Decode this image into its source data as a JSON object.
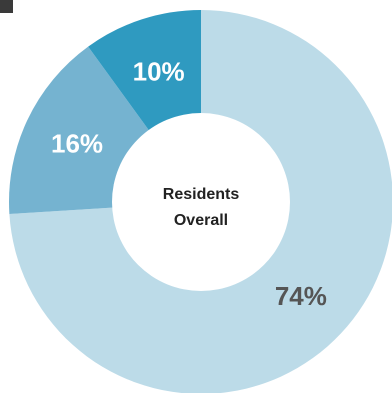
{
  "chart_data": {
    "type": "pie",
    "center_label": [
      "Residents",
      "Overall"
    ],
    "slices": [
      {
        "label": "74%",
        "value": 74,
        "color": "#bcdbe8",
        "label_color": "#555555"
      },
      {
        "label": "16%",
        "value": 16,
        "color": "#75b3d0",
        "label_color": "#ffffff"
      },
      {
        "label": "10%",
        "value": 10,
        "color": "#2f9ac0",
        "label_color": "#ffffff"
      }
    ]
  }
}
